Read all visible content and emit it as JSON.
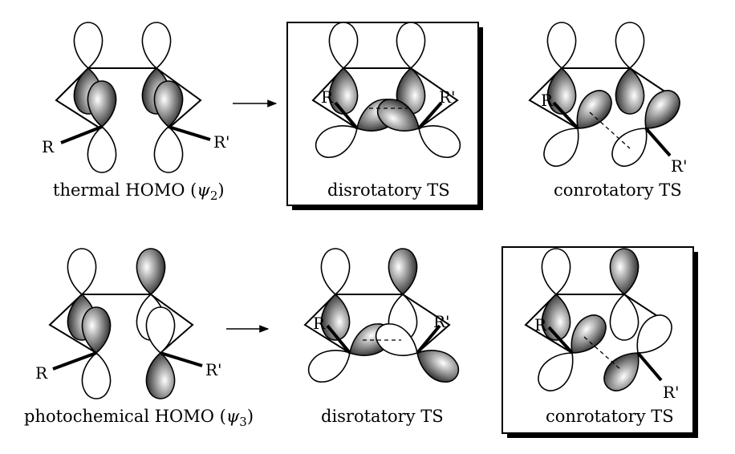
{
  "panels": [
    {
      "caption": "thermal HOMO (",
      "psi": "ψ",
      "sub": "2",
      "close": ")",
      "r": "R",
      "rp": "R'"
    },
    {
      "caption": "disrotatory TS",
      "r": "R",
      "rp": "R'"
    },
    {
      "caption": "conrotatory TS",
      "r": "R",
      "rp": "R'"
    },
    {
      "caption": "photochemical HOMO (",
      "psi": "ψ",
      "sub": "3",
      "close": ")",
      "r": "R",
      "rp": "R'"
    },
    {
      "caption": "disrotatory TS",
      "r": "R",
      "rp": "R'"
    },
    {
      "caption": "conrotatory TS",
      "r": "R",
      "rp": "R'"
    }
  ],
  "highlighted": [
    "disrotatory TS (thermal)",
    "conrotatory TS (photochemical)"
  ],
  "colors": {
    "line": "#000000",
    "shade_dark": "#3a3a3a",
    "shade_light": "#ffffff"
  }
}
